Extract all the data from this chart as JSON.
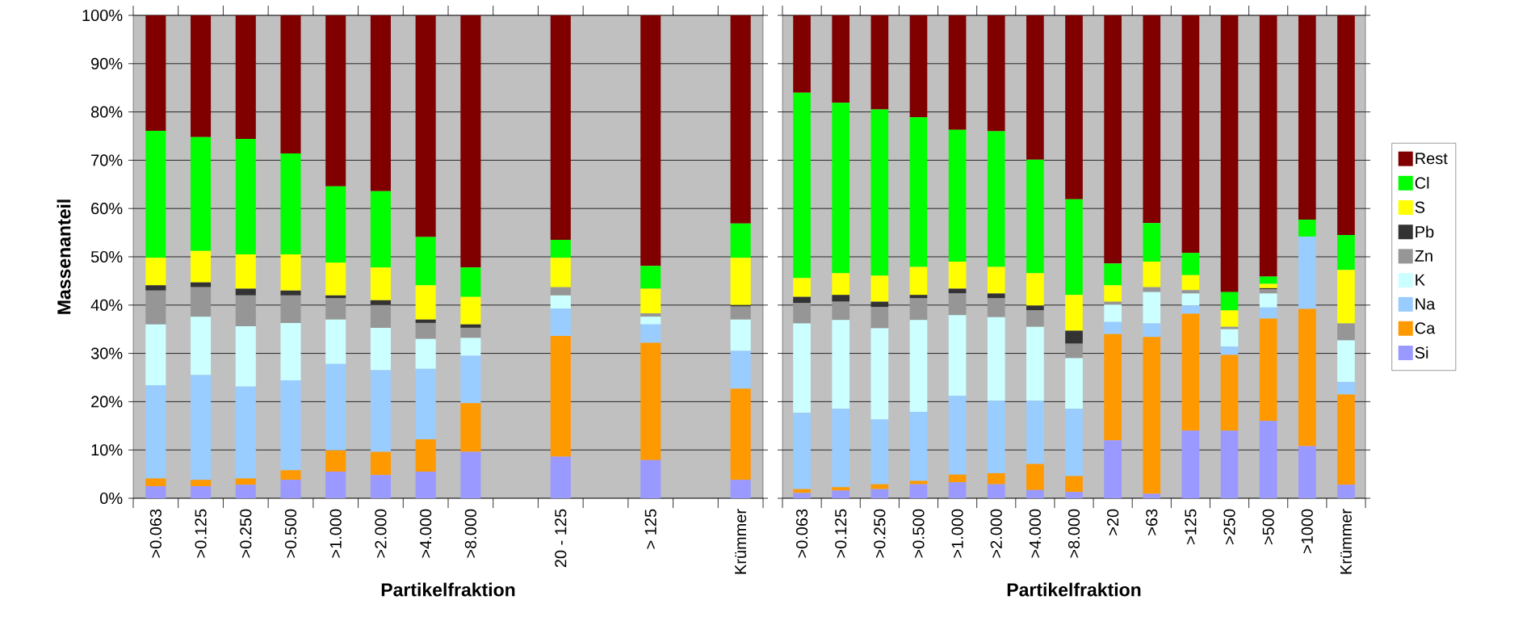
{
  "chart_data": [
    {
      "type": "bar",
      "stacked": true,
      "xlabel": "Partikelfraktion",
      "ylabel": "Massenanteil",
      "grid": "y",
      "categories": [
        ">0.063",
        ">0.125",
        ">0.250",
        ">0.500",
        ">1.000",
        ">2.000",
        ">4.000",
        ">8.000",
        null,
        "20 - 125",
        null,
        "> 125",
        null,
        "Krümmer"
      ],
      "ylim": [
        0,
        100
      ],
      "yticks": [
        {
          "value": 0,
          "label": "0%"
        },
        {
          "value": 10,
          "label": "10%"
        },
        {
          "value": 20,
          "label": "20%"
        },
        {
          "value": 30,
          "label": "30%"
        },
        {
          "value": 40,
          "label": "40%"
        },
        {
          "value": 50,
          "label": "50%"
        },
        {
          "value": 60,
          "label": "60%"
        },
        {
          "value": 70,
          "label": "70%"
        },
        {
          "value": 80,
          "label": "80%"
        },
        {
          "value": 90,
          "label": "90%"
        },
        {
          "value": 100,
          "label": "100%"
        }
      ],
      "series": [
        {
          "color": "#9999ff",
          "values": [
            2.5,
            2.5,
            2.8,
            3.8,
            5.5,
            4.8,
            5.5,
            9.6,
            null,
            8.6,
            null,
            7.9,
            null,
            3.8
          ]
        },
        {
          "color": "#ff9900",
          "values": [
            1.6,
            1.3,
            1.3,
            2.0,
            4.4,
            4.8,
            6.7,
            10.1,
            null,
            25.0,
            null,
            24.3,
            null,
            18.9
          ]
        },
        {
          "color": "#99ccff",
          "values": [
            19.3,
            21.7,
            19.0,
            18.6,
            17.9,
            16.9,
            14.6,
            9.8,
            null,
            5.7,
            null,
            3.8,
            null,
            7.8
          ]
        },
        {
          "color": "#ccffff",
          "values": [
            12.6,
            12.1,
            12.5,
            11.9,
            9.2,
            8.8,
            6.2,
            3.7,
            null,
            2.7,
            null,
            1.6,
            null,
            6.5
          ]
        },
        {
          "color": "#969696",
          "values": [
            7.0,
            6.1,
            6.4,
            5.7,
            4.4,
            4.7,
            3.3,
            2.1,
            null,
            1.7,
            null,
            0.7,
            null,
            2.7
          ]
        },
        {
          "color": "#333333",
          "values": [
            1.1,
            1.0,
            1.4,
            1.0,
            0.6,
            1.0,
            0.7,
            0.7,
            null,
            0,
            null,
            0,
            null,
            0.3
          ]
        },
        {
          "color": "#ffff00",
          "values": [
            5.7,
            6.5,
            7.1,
            7.5,
            6.8,
            6.8,
            7.1,
            5.7,
            null,
            6.1,
            null,
            5.1,
            null,
            9.8
          ]
        },
        {
          "color": "#00ff00",
          "values": [
            26.3,
            23.6,
            23.9,
            20.9,
            15.8,
            15.8,
            10.0,
            6.1,
            null,
            3.7,
            null,
            4.7,
            null,
            7.1
          ]
        },
        {
          "color": "#800000",
          "values": [
            23.9,
            25.2,
            25.6,
            28.6,
            35.4,
            36.4,
            45.9,
            52.2,
            null,
            46.5,
            null,
            51.9,
            null,
            43.1
          ]
        }
      ]
    },
    {
      "type": "bar",
      "stacked": true,
      "xlabel": "Partikelfraktion",
      "grid": "y",
      "legend": "right",
      "tick_labels": "x",
      "categories": [
        ">0.063",
        ">0.125",
        ">0.250",
        ">0.500",
        ">1.000",
        ">2.000",
        ">4.000",
        ">8.000",
        ">20",
        ">63",
        ">125",
        ">250",
        ">500",
        ">1000",
        "Krümmer"
      ],
      "ylim": [
        0,
        100
      ],
      "yticks": [
        0,
        10,
        20,
        30,
        40,
        50,
        60,
        70,
        80,
        90,
        100
      ],
      "series": [
        {
          "name": "Si",
          "color": "#9999ff",
          "values": [
            1.1,
            1.6,
            1.9,
            2.9,
            3.3,
            2.9,
            1.7,
            1.3,
            12.0,
            0.9,
            14.0,
            14.0,
            16.0,
            10.8,
            2.8
          ]
        },
        {
          "name": "Ca",
          "color": "#ff9900",
          "values": [
            0.8,
            0.7,
            1.0,
            0.7,
            1.6,
            2.3,
            5.4,
            3.3,
            22.0,
            32.5,
            24.2,
            15.7,
            21.2,
            28.4,
            18.7
          ]
        },
        {
          "name": "Na",
          "color": "#99ccff",
          "values": [
            15.8,
            16.2,
            13.4,
            14.3,
            16.3,
            15.0,
            13.1,
            13.9,
            2.5,
            2.8,
            1.7,
            1.7,
            2.3,
            15.0,
            2.6
          ]
        },
        {
          "name": "K",
          "color": "#ccffff",
          "values": [
            18.5,
            18.4,
            18.9,
            19.0,
            16.7,
            17.3,
            15.3,
            10.5,
            3.6,
            6.5,
            2.5,
            3.6,
            2.9,
            0,
            8.6
          ]
        },
        {
          "name": "Zn",
          "color": "#969696",
          "values": [
            4.2,
            3.8,
            4.4,
            4.5,
            4.5,
            3.9,
            3.4,
            3.0,
            0.6,
            1.0,
            0.7,
            0.5,
            0.9,
            0,
            3.5
          ]
        },
        {
          "name": "Pb",
          "color": "#333333",
          "values": [
            1.3,
            1.4,
            1.1,
            0.7,
            1.0,
            1.0,
            1.0,
            2.7,
            0,
            0,
            0,
            0,
            0.2,
            0,
            0
          ]
        },
        {
          "name": "S",
          "color": "#ffff00",
          "values": [
            3.9,
            4.5,
            5.4,
            5.8,
            5.6,
            5.5,
            6.7,
            7.4,
            3.4,
            5.3,
            3.1,
            3.4,
            0.9,
            0,
            11.1
          ]
        },
        {
          "name": "Cl",
          "color": "#00ff00",
          "values": [
            38.4,
            35.3,
            34.4,
            31.0,
            27.3,
            28.1,
            23.5,
            19.8,
            4.5,
            8.0,
            4.6,
            3.8,
            1.5,
            3.5,
            7.2
          ]
        },
        {
          "name": "Rest",
          "color": "#800000",
          "values": [
            16.0,
            18.1,
            19.5,
            21.1,
            23.7,
            24.0,
            29.9,
            38.1,
            51.4,
            43.0,
            49.2,
            57.3,
            54.1,
            42.3,
            45.5
          ]
        }
      ]
    }
  ]
}
